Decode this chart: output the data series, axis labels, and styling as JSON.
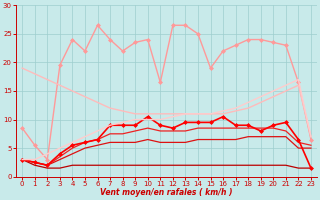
{
  "xlabel": "Vent moyen/en rafales ( km/h )",
  "xlim": [
    -0.5,
    23.5
  ],
  "ylim": [
    0,
    30
  ],
  "yticks": [
    0,
    5,
    10,
    15,
    20,
    25,
    30
  ],
  "xticks": [
    0,
    1,
    2,
    3,
    4,
    5,
    6,
    7,
    8,
    9,
    10,
    11,
    12,
    13,
    14,
    15,
    16,
    17,
    18,
    19,
    20,
    21,
    22,
    23
  ],
  "background_color": "#c8eaea",
  "grid_color": "#9ecece",
  "axis_color": "#cc0000",
  "series": [
    {
      "x": [
        0,
        1,
        2,
        3,
        4,
        5,
        6,
        7,
        8,
        9,
        10,
        11,
        12,
        13,
        14,
        15,
        16,
        17,
        18,
        19,
        20,
        21,
        22,
        23
      ],
      "y": [
        3,
        2,
        1.5,
        1.5,
        2,
        2,
        2,
        2,
        2,
        2,
        2,
        2,
        2,
        2,
        2,
        2,
        2,
        2,
        2,
        2,
        2,
        2,
        1.5,
        1.5
      ],
      "color": "#bb0000",
      "lw": 0.9,
      "marker": null
    },
    {
      "x": [
        0,
        1,
        2,
        3,
        4,
        5,
        6,
        7,
        8,
        9,
        10,
        11,
        12,
        13,
        14,
        15,
        16,
        17,
        18,
        19,
        20,
        21,
        22,
        23
      ],
      "y": [
        3,
        2.5,
        2,
        3,
        4,
        5,
        5.5,
        6,
        6,
        6,
        6.5,
        6,
        6,
        6,
        6.5,
        6.5,
        6.5,
        6.5,
        7,
        7,
        7,
        7,
        5,
        5
      ],
      "color": "#dd1111",
      "lw": 0.9,
      "marker": null
    },
    {
      "x": [
        0,
        1,
        2,
        3,
        4,
        5,
        6,
        7,
        8,
        9,
        10,
        11,
        12,
        13,
        14,
        15,
        16,
        17,
        18,
        19,
        20,
        21,
        22,
        23
      ],
      "y": [
        3,
        2.5,
        2,
        3.5,
        5,
        6,
        6.5,
        7.5,
        7.5,
        8,
        8.5,
        8,
        8,
        8,
        8.5,
        8.5,
        8.5,
        8.5,
        8.5,
        8.5,
        8.5,
        8,
        6,
        5.5
      ],
      "color": "#ee2222",
      "lw": 0.9,
      "marker": null
    },
    {
      "x": [
        0,
        1,
        2,
        3,
        4,
        5,
        6,
        7,
        8,
        9,
        10,
        11,
        12,
        13,
        14,
        15,
        16,
        17,
        18,
        19,
        20,
        21,
        22,
        23
      ],
      "y": [
        3,
        2.5,
        2,
        4,
        5.5,
        6,
        6.5,
        9,
        9,
        9,
        10.5,
        9,
        8.5,
        9.5,
        9.5,
        9.5,
        10.5,
        9,
        9,
        8,
        9,
        9.5,
        6.5,
        1.5
      ],
      "color": "#ff0000",
      "lw": 1.2,
      "marker": "D",
      "ms": 2.0
    },
    {
      "x": [
        0,
        1,
        2,
        3,
        4,
        5,
        6,
        7,
        8,
        9,
        10,
        11,
        12,
        13,
        14,
        15,
        16,
        17,
        18,
        19,
        20,
        21,
        22,
        23
      ],
      "y": [
        8.5,
        5.5,
        3,
        19.5,
        24,
        22,
        26.5,
        24,
        22,
        23.5,
        24,
        16.5,
        26.5,
        26.5,
        25,
        19,
        22,
        23,
        24,
        24,
        23.5,
        23,
        16.5,
        6.5
      ],
      "color": "#ff9999",
      "lw": 1.0,
      "marker": "D",
      "ms": 2.0
    },
    {
      "x": [
        0,
        1,
        2,
        3,
        4,
        5,
        6,
        7,
        8,
        9,
        10,
        11,
        12,
        13,
        14,
        15,
        16,
        17,
        18,
        19,
        20,
        21,
        22,
        23
      ],
      "y": [
        19,
        18,
        17,
        16,
        15,
        14,
        13,
        12,
        11.5,
        11,
        11,
        11,
        11,
        11,
        11,
        11,
        11,
        11.5,
        12,
        13,
        14,
        15,
        16,
        7
      ],
      "color": "#ffbbbb",
      "lw": 1.0,
      "marker": null
    },
    {
      "x": [
        0,
        1,
        2,
        3,
        4,
        5,
        6,
        7,
        8,
        9,
        10,
        11,
        12,
        13,
        14,
        15,
        16,
        17,
        18,
        19,
        20,
        21,
        22,
        23
      ],
      "y": [
        3,
        3,
        4,
        5,
        6,
        7,
        8,
        9,
        9.5,
        10,
        10,
        10,
        10.5,
        11,
        11,
        11,
        11.5,
        12,
        13,
        14,
        15,
        16,
        17,
        7
      ],
      "color": "#ffcccc",
      "lw": 1.0,
      "marker": null
    }
  ]
}
